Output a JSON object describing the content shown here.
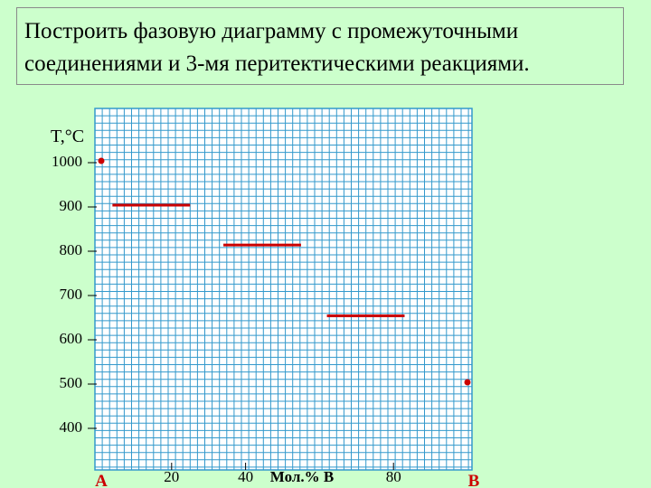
{
  "title": {
    "line1": "Построить фазовую  диаграмму с промежуточными",
    "line2": "соединениями и 3-мя перитектическими реакциями."
  },
  "colors": {
    "background": "#ccffcc",
    "grid": "#3399cc",
    "grid_bg": "#ffffff",
    "marks": "#cc0000"
  },
  "chart_data": {
    "type": "diagram",
    "ylabel": "T,°C",
    "xlabel": "Мол.% В",
    "y_ticks": [
      1000,
      900,
      800,
      700,
      600,
      500,
      400
    ],
    "x_ticks": [
      20,
      40,
      80
    ],
    "x_ends": [
      "A",
      "B"
    ],
    "melting_points": [
      {
        "component": "A",
        "x": 0,
        "T": 1000
      },
      {
        "component": "B",
        "x": 100,
        "T": 500
      }
    ],
    "peritectic_lines": [
      {
        "x1": 4,
        "x2": 25,
        "T": 900
      },
      {
        "x1": 34,
        "x2": 55,
        "T": 810
      },
      {
        "x1": 62,
        "x2": 83,
        "T": 650
      }
    ]
  }
}
